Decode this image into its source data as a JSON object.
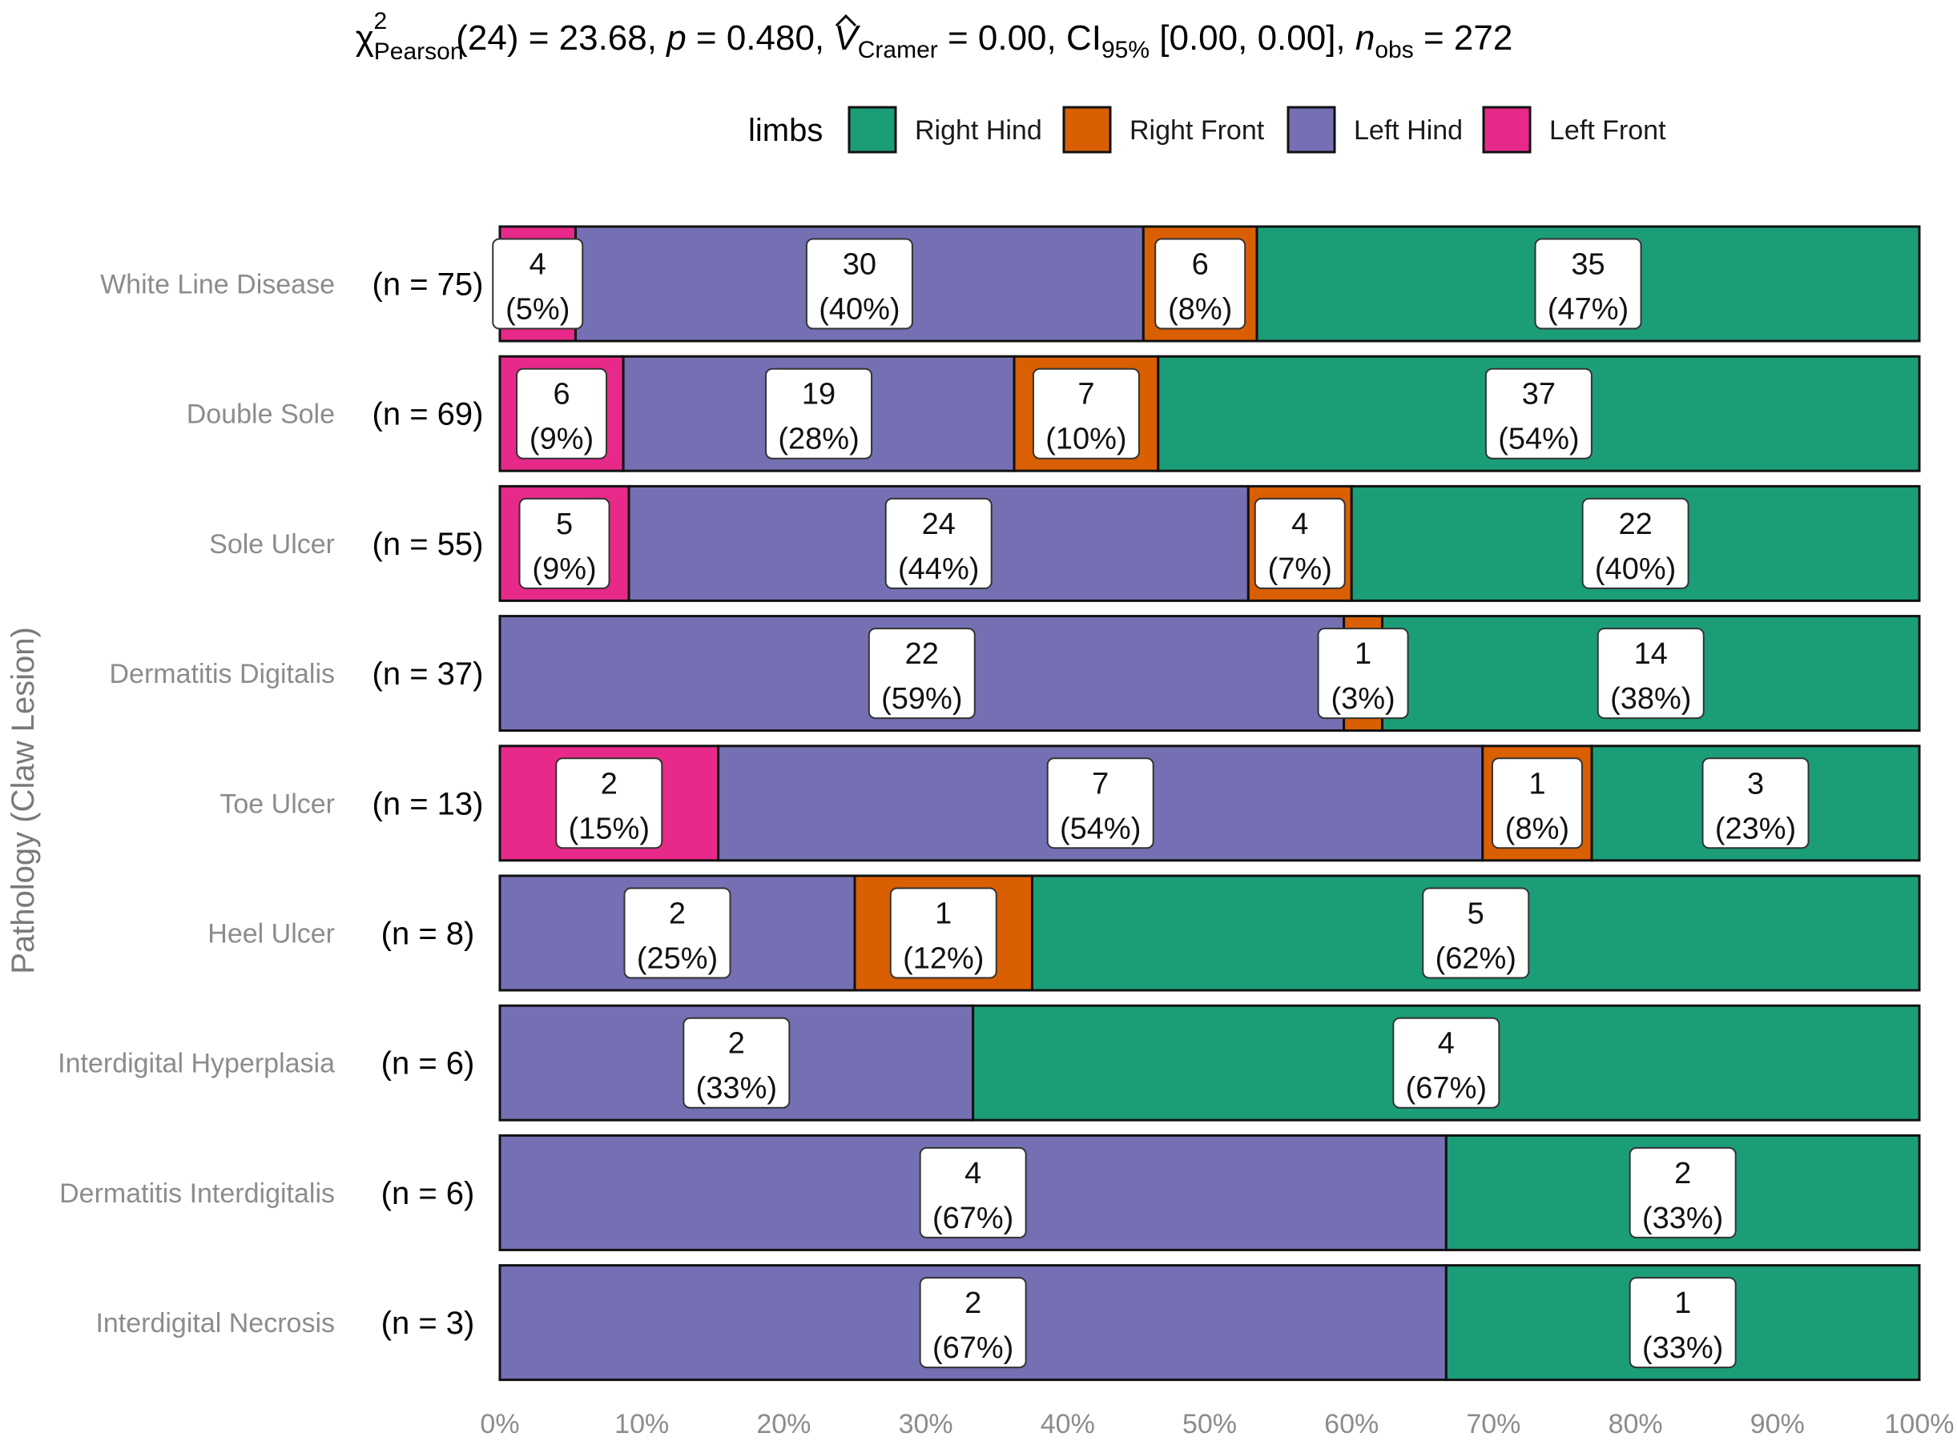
{
  "colors": {
    "Right Hind": "#1B9E77",
    "Right Front": "#D95F02",
    "Left Hind": "#7570B3",
    "Left Front": "#E7298A"
  },
  "chart_data": {
    "type": "bar",
    "orientation": "horizontal-stacked-percent",
    "subtitle_parts": {
      "chi": "χ",
      "chi_sup": "2",
      "chi_sub": "Pearson",
      "dof": "(24) = 23.68, ",
      "p": "p",
      "p_val": " = 0.480, ",
      "v": "V",
      "v_sub": "Cramer",
      "v_val": " = 0.00, CI",
      "ci_sub": "95%",
      "ci_val": " [0.00, 0.00], ",
      "n": "n",
      "n_sub": "obs",
      "n_val": " = 272"
    },
    "legend_title": "limbs",
    "legend": [
      "Right Hind",
      "Right Front",
      "Left Hind",
      "Left Front"
    ],
    "ylabel": "Pathology (Claw Lesion)",
    "xlim": [
      0,
      100
    ],
    "x_ticks": [
      "0%",
      "10%",
      "20%",
      "30%",
      "40%",
      "50%",
      "60%",
      "70%",
      "80%",
      "90%",
      "100%"
    ],
    "stack_order_left_to_right": [
      "Left Front",
      "Left Hind",
      "Right Front",
      "Right Hind"
    ],
    "categories": [
      {
        "name": "White Line Disease",
        "n_label": "(n = 75)",
        "segments": {
          "Left Front": [
            4,
            "(5%)"
          ],
          "Left Hind": [
            30,
            "(40%)"
          ],
          "Right Front": [
            6,
            "(8%)"
          ],
          "Right Hind": [
            35,
            "(47%)"
          ]
        }
      },
      {
        "name": "Double Sole",
        "n_label": "(n = 69)",
        "segments": {
          "Left Front": [
            6,
            "(9%)"
          ],
          "Left Hind": [
            19,
            "(28%)"
          ],
          "Right Front": [
            7,
            "(10%)"
          ],
          "Right Hind": [
            37,
            "(54%)"
          ]
        }
      },
      {
        "name": "Sole Ulcer",
        "n_label": "(n = 55)",
        "segments": {
          "Left Front": [
            5,
            "(9%)"
          ],
          "Left Hind": [
            24,
            "(44%)"
          ],
          "Right Front": [
            4,
            "(7%)"
          ],
          "Right Hind": [
            22,
            "(40%)"
          ]
        }
      },
      {
        "name": "Dermatitis Digitalis",
        "n_label": "(n = 37)",
        "segments": {
          "Left Hind": [
            22,
            "(59%)"
          ],
          "Right Front": [
            1,
            "(3%)"
          ],
          "Right Hind": [
            14,
            "(38%)"
          ]
        }
      },
      {
        "name": "Toe Ulcer",
        "n_label": "(n = 13)",
        "segments": {
          "Left Front": [
            2,
            "(15%)"
          ],
          "Left Hind": [
            7,
            "(54%)"
          ],
          "Right Front": [
            1,
            "(8%)"
          ],
          "Right Hind": [
            3,
            "(23%)"
          ]
        }
      },
      {
        "name": "Heel Ulcer",
        "n_label": "(n = 8)",
        "segments": {
          "Left Hind": [
            2,
            "(25%)"
          ],
          "Right Front": [
            1,
            "(12%)"
          ],
          "Right Hind": [
            5,
            "(62%)"
          ]
        }
      },
      {
        "name": "Interdigital Hyperplasia",
        "n_label": "(n = 6)",
        "segments": {
          "Left Hind": [
            2,
            "(33%)"
          ],
          "Right Hind": [
            4,
            "(67%)"
          ]
        }
      },
      {
        "name": "Dermatitis Interdigitalis",
        "n_label": "(n = 6)",
        "segments": {
          "Left Hind": [
            4,
            "(67%)"
          ],
          "Right Hind": [
            2,
            "(33%)"
          ]
        }
      },
      {
        "name": "Interdigital Necrosis",
        "n_label": "(n = 3)",
        "segments": {
          "Left Hind": [
            2,
            "(67%)"
          ],
          "Right Hind": [
            1,
            "(33%)"
          ]
        }
      }
    ]
  }
}
